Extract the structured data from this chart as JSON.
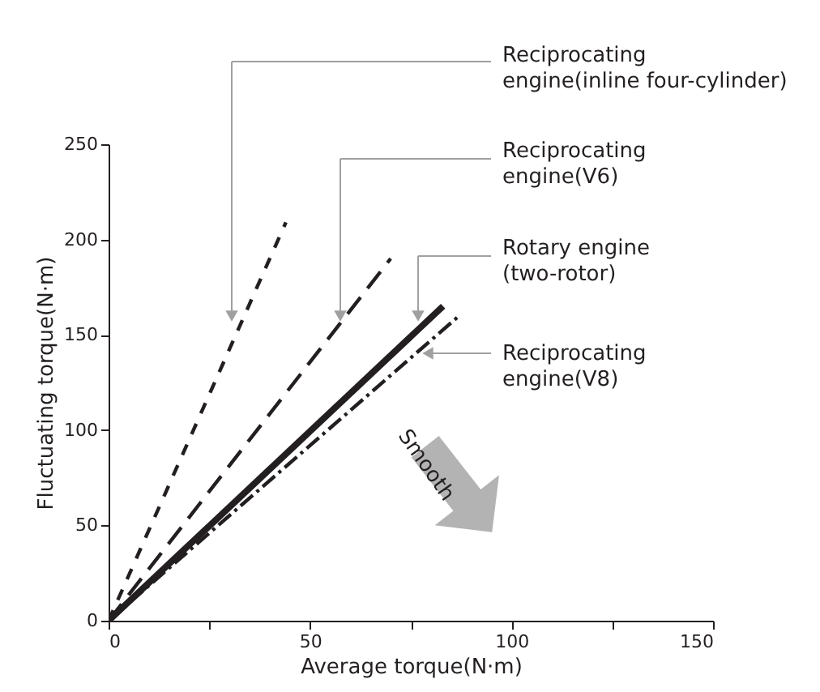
{
  "chart_data": {
    "type": "line",
    "xlabel": "Average torque(N·m)",
    "ylabel": "Fluctuating torque(N·m)",
    "xlim": [
      0,
      150
    ],
    "ylim": [
      0,
      250
    ],
    "xticks": [
      0,
      {
        "value": 25,
        "label": null
      },
      50,
      {
        "value": 75,
        "label": null
      },
      100,
      {
        "value": 125,
        "label": null
      },
      150
    ],
    "yticks": [
      0,
      50,
      100,
      150,
      200,
      250
    ],
    "grid": false,
    "legend": false,
    "marker": "none",
    "series": [
      {
        "name": "Reciprocating\nengine(inline four-cylinder)",
        "color": "#231f20",
        "line_style": "dashed",
        "x": [
          0,
          44
        ],
        "values": [
          0,
          209
        ]
      },
      {
        "name": "Reciprocating\nengine(V6)",
        "color": "#231f20",
        "line_style": "dashed",
        "x": [
          0,
          70
        ],
        "values": [
          0,
          190
        ]
      },
      {
        "name": "Rotary engine\n(two-rotor)",
        "color": "#231f20",
        "line_style": "solid",
        "x": [
          0,
          83
        ],
        "values": [
          0,
          165
        ]
      },
      {
        "name": "Reciprocating\nengine(V8)",
        "color": "#231f20",
        "line_style": "dashed",
        "x": [
          0,
          87
        ],
        "values": [
          0,
          160
        ]
      }
    ],
    "annotations": [
      "Smooth"
    ]
  }
}
